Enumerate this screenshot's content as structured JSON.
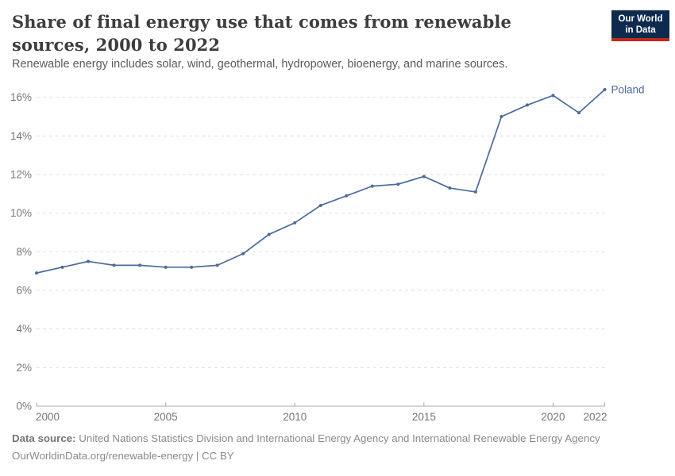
{
  "header": {
    "title": "Share of final energy use that comes from renewable sources, 2000 to 2022",
    "subtitle": "Renewable energy includes solar, wind, geothermal, hydropower, bioenergy, and marine sources.",
    "logo": {
      "line1": "Our World",
      "line2": "in Data"
    }
  },
  "chart_data": {
    "type": "line",
    "title": "Share of final energy use that comes from renewable sources, 2000 to 2022",
    "x": [
      2000,
      2001,
      2002,
      2003,
      2004,
      2005,
      2006,
      2007,
      2008,
      2009,
      2010,
      2011,
      2012,
      2013,
      2014,
      2015,
      2016,
      2017,
      2018,
      2019,
      2020,
      2021,
      2022
    ],
    "series": [
      {
        "name": "Poland",
        "color": "#4C6A9C",
        "values": [
          6.9,
          7.2,
          7.5,
          7.3,
          7.3,
          7.2,
          7.2,
          7.3,
          7.9,
          8.9,
          9.5,
          10.4,
          10.9,
          11.4,
          11.5,
          11.9,
          11.3,
          11.1,
          15.0,
          15.6,
          16.1,
          15.2,
          16.4
        ]
      }
    ],
    "xlim": [
      2000,
      2022
    ],
    "ylim": [
      0,
      16
    ],
    "x_ticks": [
      2000,
      2005,
      2010,
      2015,
      2020,
      2022
    ],
    "y_ticks": [
      0,
      2,
      4,
      6,
      8,
      10,
      12,
      14,
      16
    ],
    "y_tick_suffix": "%",
    "grid": "horizontal-dashed",
    "legend_position": "end-of-line-label"
  },
  "footer": {
    "datasource_label": "Data source:",
    "datasource_text": "United Nations Statistics Division and International Energy Agency and International Renewable Energy Agency",
    "url_line": "OurWorldinData.org/renewable-energy | CC BY"
  },
  "colors": {
    "line": "#4C6A9C",
    "grid": "#e0e0e0",
    "axis": "#a8a8a8",
    "logo_bg": "#0e2a4e",
    "logo_accent": "#c3281e",
    "title_text": "#3d3d3d"
  }
}
